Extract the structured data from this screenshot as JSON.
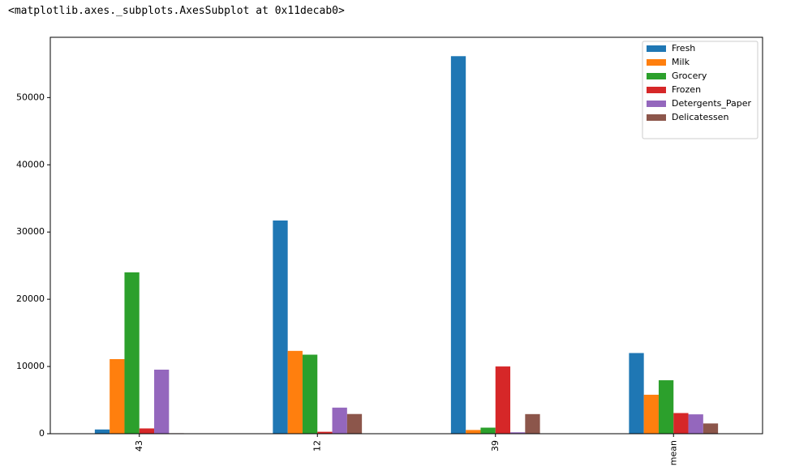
{
  "output_text": "<matplotlib.axes._subplots.AxesSubplot at 0x11decab0>",
  "chart_data": {
    "type": "bar",
    "categories": [
      "43",
      "12",
      "39",
      "mean"
    ],
    "series": [
      {
        "name": "Fresh",
        "color": "#1f77b4",
        "values": [
          630,
          31714,
          56159,
          12000.3
        ]
      },
      {
        "name": "Milk",
        "color": "#ff7f0e",
        "values": [
          11095,
          12319,
          555,
          5796.27
        ]
      },
      {
        "name": "Grocery",
        "color": "#2ca02c",
        "values": [
          23998,
          11757,
          902,
          7951.28
        ]
      },
      {
        "name": "Frozen",
        "color": "#d62728",
        "values": [
          787,
          287,
          10002,
          3071.93
        ]
      },
      {
        "name": "Detergents_Paper",
        "color": "#9467bd",
        "values": [
          9529,
          3881,
          212,
          2881.49
        ]
      },
      {
        "name": "Delicatessen",
        "color": "#8c564b",
        "values": [
          72,
          2931,
          2916,
          1524.87
        ]
      }
    ],
    "ylim": [
      0,
      58967
    ],
    "yticks": [
      0,
      10000,
      20000,
      30000,
      40000,
      50000
    ],
    "grid": false,
    "legend": "upper-right"
  }
}
